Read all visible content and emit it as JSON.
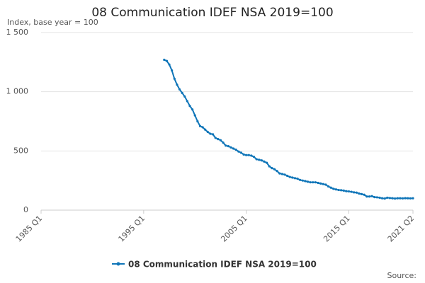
{
  "chart_data": {
    "type": "line",
    "title": "08 Communication IDEF NSA 2019=100",
    "y_label": "Index, base year = 100",
    "source": "Source:",
    "x": [
      "1997 Q1",
      "1997 Q2",
      "1997 Q3",
      "1997 Q4",
      "1998 Q1",
      "1998 Q2",
      "1998 Q3",
      "1998 Q4",
      "1999 Q1",
      "1999 Q2",
      "1999 Q3",
      "1999 Q4",
      "2000 Q1",
      "2000 Q2",
      "2000 Q3",
      "2000 Q4",
      "2001 Q1",
      "2001 Q2",
      "2001 Q3",
      "2001 Q4",
      "2002 Q1",
      "2002 Q2",
      "2002 Q3",
      "2002 Q4",
      "2003 Q1",
      "2003 Q2",
      "2003 Q3",
      "2003 Q4",
      "2004 Q1",
      "2004 Q2",
      "2004 Q3",
      "2004 Q4",
      "2005 Q1",
      "2005 Q2",
      "2005 Q3",
      "2005 Q4",
      "2006 Q1",
      "2006 Q2",
      "2006 Q3",
      "2006 Q4",
      "2007 Q1",
      "2007 Q2",
      "2007 Q3",
      "2007 Q4",
      "2008 Q1",
      "2008 Q2",
      "2008 Q3",
      "2008 Q4",
      "2009 Q1",
      "2009 Q2",
      "2009 Q3",
      "2009 Q4",
      "2010 Q1",
      "2010 Q2",
      "2010 Q3",
      "2010 Q4",
      "2011 Q1",
      "2011 Q2",
      "2011 Q3",
      "2011 Q4",
      "2012 Q1",
      "2012 Q2",
      "2012 Q3",
      "2012 Q4",
      "2013 Q1",
      "2013 Q2",
      "2013 Q3",
      "2013 Q4",
      "2014 Q1",
      "2014 Q2",
      "2014 Q3",
      "2014 Q4",
      "2015 Q1",
      "2015 Q2",
      "2015 Q3",
      "2015 Q4",
      "2016 Q1",
      "2016 Q2",
      "2016 Q3",
      "2016 Q4",
      "2017 Q1",
      "2017 Q2",
      "2017 Q3",
      "2017 Q4",
      "2018 Q1",
      "2018 Q2",
      "2018 Q3",
      "2018 Q4",
      "2019 Q1",
      "2019 Q2",
      "2019 Q3",
      "2019 Q4",
      "2020 Q1",
      "2020 Q2",
      "2020 Q3",
      "2020 Q4",
      "2021 Q1",
      "2021 Q2"
    ],
    "series": [
      {
        "name": "08 Communication IDEF NSA 2019=100",
        "color": "#0f75b8",
        "values": [
          1270,
          1260,
          1230,
          1180,
          1110,
          1060,
          1020,
          990,
          960,
          920,
          880,
          850,
          800,
          750,
          710,
          700,
          680,
          660,
          645,
          640,
          610,
          600,
          590,
          570,
          545,
          540,
          530,
          520,
          510,
          495,
          485,
          470,
          465,
          465,
          460,
          450,
          430,
          425,
          420,
          410,
          400,
          370,
          355,
          345,
          330,
          310,
          305,
          300,
          290,
          280,
          275,
          270,
          265,
          255,
          250,
          245,
          240,
          235,
          235,
          235,
          230,
          225,
          220,
          215,
          200,
          190,
          180,
          175,
          170,
          168,
          165,
          160,
          158,
          155,
          150,
          148,
          140,
          135,
          130,
          115,
          115,
          118,
          110,
          108,
          105,
          100,
          98,
          105,
          102,
          100,
          98,
          100,
          100,
          99,
          101,
          100,
          99,
          100
        ]
      }
    ],
    "xlim": [
      "1985 Q1",
      "2021 Q2"
    ],
    "xticks": [
      "1985 Q1",
      "1995 Q1",
      "2005 Q1",
      "2015 Q1",
      "2021 Q2"
    ],
    "ylim": [
      0,
      1500
    ],
    "yticks": [
      0,
      500,
      {
        "value": 1000,
        "label": "1 000"
      },
      {
        "value": 1500,
        "label": "1 500"
      }
    ],
    "grid": true
  }
}
